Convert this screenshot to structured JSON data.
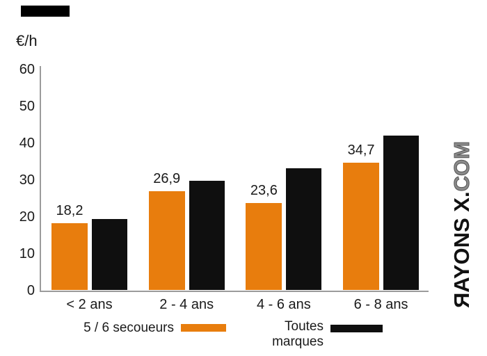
{
  "page": {
    "background": "#ffffff",
    "accent_orange": "#E87D0D",
    "series_black": "#0F0F0F",
    "axis_gray": "#9b9b9b"
  },
  "chart_data": {
    "type": "bar",
    "title": "",
    "ylabel": "€/h",
    "xlabel": "",
    "categories": [
      "< 2 ans",
      "2 - 4 ans",
      "4 - 6 ans",
      "6 - 8 ans"
    ],
    "series": [
      {
        "name": "5 / 6 secoueurs",
        "color": "#E87D0D",
        "values": [
          18.2,
          26.9,
          23.6,
          34.7
        ],
        "data_labels": [
          "18,2",
          "26,9",
          "23,6",
          "34,7"
        ]
      },
      {
        "name": "Toutes marques",
        "color": "#0F0F0F",
        "values": [
          19.3,
          29.7,
          33.1,
          42.0
        ],
        "data_labels": []
      }
    ],
    "ylim": [
      0,
      60
    ],
    "yticks": [
      0,
      10,
      20,
      30,
      40,
      50,
      60
    ],
    "grid": false,
    "legend_position": "bottom"
  },
  "watermark": {
    "bold": "ЯAYONS X.",
    "light": "COM"
  }
}
